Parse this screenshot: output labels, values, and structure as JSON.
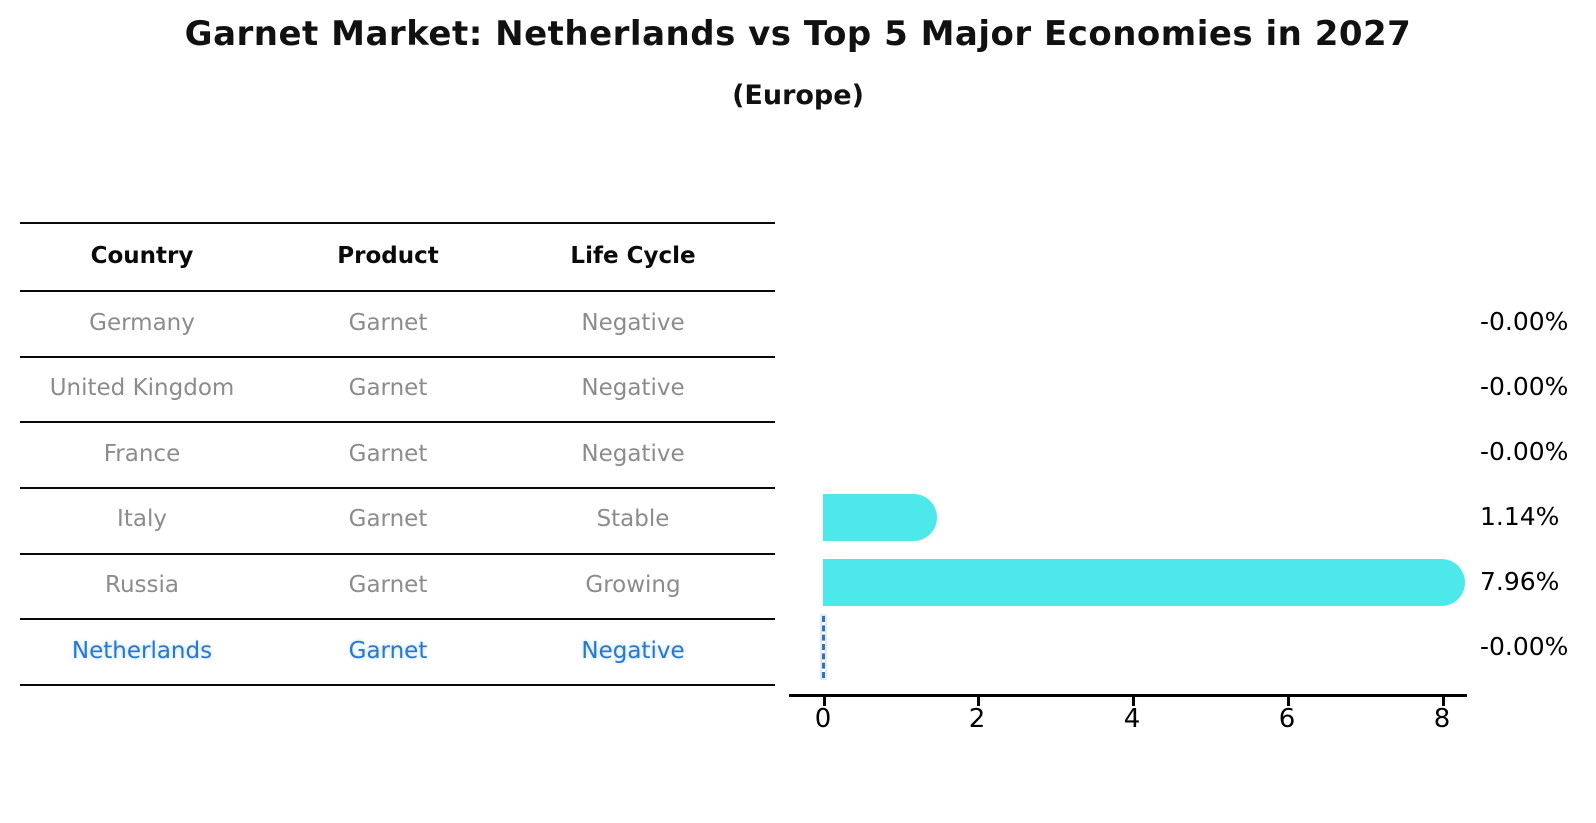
{
  "title": "Garnet Market: Netherlands vs Top 5 Major Economies in 2027",
  "subtitle": "(Europe)",
  "table": {
    "headers": {
      "country": "Country",
      "product": "Product",
      "life_cycle": "Life Cycle"
    },
    "rows": [
      {
        "country": "Germany",
        "product": "Garnet",
        "life_cycle": "Negative",
        "highlighted": false
      },
      {
        "country": "United Kingdom",
        "product": "Garnet",
        "life_cycle": "Negative",
        "highlighted": false
      },
      {
        "country": "France",
        "product": "Garnet",
        "life_cycle": "Negative",
        "highlighted": false
      },
      {
        "country": "Italy",
        "product": "Garnet",
        "life_cycle": "Stable",
        "highlighted": false
      },
      {
        "country": "Russia",
        "product": "Garnet",
        "life_cycle": "Growing",
        "highlighted": false
      },
      {
        "country": "Netherlands",
        "product": "Garnet",
        "life_cycle": "Negative",
        "highlighted": true
      }
    ]
  },
  "chart_data": {
    "type": "bar",
    "orientation": "horizontal",
    "title": "Garnet Market: Netherlands vs Top 5 Major Economies in 2027",
    "subtitle": "(Europe)",
    "categories": [
      "Germany",
      "United Kingdom",
      "France",
      "Italy",
      "Russia",
      "Netherlands"
    ],
    "values": [
      -0.0,
      -0.0,
      -0.0,
      1.14,
      7.96,
      -0.0
    ],
    "value_labels": [
      "-0.00%",
      "-0.00%",
      "-0.00%",
      "1.14%",
      "7.96%",
      "-0.00%"
    ],
    "unit": "%",
    "xlim": [
      0,
      8.5
    ],
    "xticks": [
      "0",
      "2",
      "4",
      "6",
      "8"
    ],
    "xtick_values": [
      0,
      2,
      4,
      6,
      8
    ],
    "grid": false,
    "legend": false,
    "highlight_category": "Netherlands",
    "zero_marker_style": "dashed-vertical-line"
  },
  "colors": {
    "bar_fill": "#4DE8EA",
    "highlight_text": "#2878cd",
    "muted_text": "#8c8c8c",
    "axis": "#000000",
    "zero_marker": "#3a70ad"
  }
}
